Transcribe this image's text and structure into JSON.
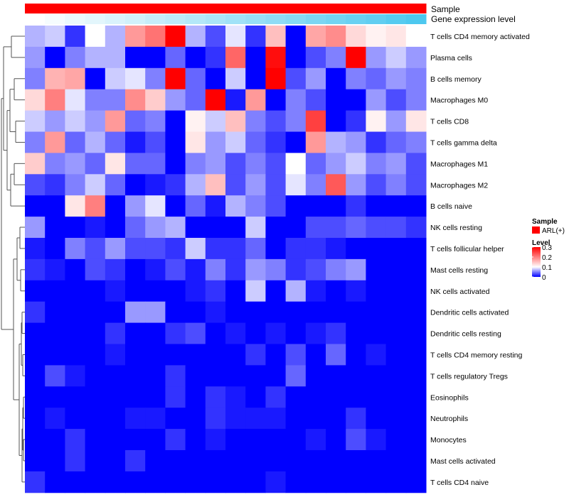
{
  "chart_data": {
    "type": "heatmap",
    "title": "",
    "xlabel": "",
    "ylabel": "",
    "annotations": {
      "sample_label": "Sample",
      "gene_label": "Gene expression level",
      "sample_color": "#ff0000",
      "gene_expression_values": [
        0.0,
        0.05,
        0.11,
        0.16,
        0.21,
        0.26,
        0.32,
        0.37,
        0.42,
        0.47,
        0.53,
        0.58,
        0.63,
        0.68,
        0.74,
        0.79,
        0.84,
        0.89,
        0.95,
        1.0
      ],
      "gene_expression_colors": [
        "#ffffff",
        "#4dc8ef"
      ]
    },
    "legend": {
      "position": "right",
      "sample_title": "Sample",
      "sample_entries": [
        {
          "label": "ARL(+)",
          "color": "#ff0000"
        }
      ],
      "level_title": "Level",
      "level_ticks": [
        0.3,
        0.2,
        0.1,
        0
      ],
      "level_tick_labels": [
        "0.3",
        "0.2",
        "0.1",
        "0"
      ]
    },
    "color_scale": {
      "min": 0,
      "mid": 0.1,
      "max": 0.3,
      "colors": [
        "#0000ff",
        "#ffffff",
        "#ff0000"
      ]
    },
    "columns": 20,
    "rows": [
      "T cells CD4 memory activated",
      "Plasma cells",
      "B cells memory",
      "Macrophages M0",
      "T cells CD8",
      "T cells gamma delta",
      "Macrophages M1",
      "Macrophages M2",
      "B cells naive",
      "NK cells resting",
      "T cells follicular helper",
      "Mast cells resting",
      "NK cells activated",
      "Dendritic cells activated",
      "Dendritic cells resting",
      "T cells CD4 memory resting",
      "T cells regulatory  Tregs",
      "Eosinophils",
      "Neutrophils",
      "Monocytes",
      "Mast cells activated",
      "T cells CD4 naive"
    ],
    "values": [
      [
        0.07,
        0.08,
        0.02,
        0.1,
        0.07,
        0.18,
        0.21,
        0.3,
        0.07,
        0.03,
        0.09,
        0.02,
        0.15,
        0.0,
        0.17,
        0.19,
        0.13,
        0.11,
        0.12,
        0.1
      ],
      [
        0.06,
        0.0,
        0.05,
        0.07,
        0.07,
        0.0,
        0.0,
        0.04,
        0.0,
        0.02,
        0.22,
        0.0,
        0.29,
        0.0,
        0.03,
        0.05,
        0.3,
        0.06,
        0.08,
        0.06
      ],
      [
        0.05,
        0.16,
        0.17,
        0.0,
        0.08,
        0.09,
        0.05,
        0.3,
        0.04,
        0.0,
        0.08,
        0.0,
        0.3,
        0.03,
        0.06,
        0.0,
        0.05,
        0.04,
        0.06,
        0.05
      ],
      [
        0.13,
        0.2,
        0.09,
        0.05,
        0.05,
        0.19,
        0.14,
        0.06,
        0.04,
        0.3,
        0.01,
        0.18,
        0.0,
        0.05,
        0.03,
        0.0,
        0.0,
        0.06,
        0.03,
        0.05
      ],
      [
        0.08,
        0.06,
        0.08,
        0.06,
        0.18,
        0.04,
        0.05,
        0.0,
        0.11,
        0.08,
        0.15,
        0.05,
        0.03,
        0.05,
        0.25,
        0.0,
        0.02,
        0.11,
        0.06,
        0.12
      ],
      [
        0.05,
        0.18,
        0.04,
        0.07,
        0.04,
        0.01,
        0.03,
        0.0,
        0.12,
        0.06,
        0.08,
        0.04,
        0.02,
        0.0,
        0.18,
        0.07,
        0.06,
        0.02,
        0.04,
        0.05
      ],
      [
        0.14,
        0.05,
        0.06,
        0.04,
        0.12,
        0.04,
        0.04,
        0.0,
        0.05,
        0.06,
        0.03,
        0.05,
        0.03,
        0.1,
        0.04,
        0.06,
        0.08,
        0.05,
        0.06,
        0.03
      ],
      [
        0.03,
        0.02,
        0.05,
        0.08,
        0.04,
        0.0,
        0.01,
        0.02,
        0.07,
        0.15,
        0.03,
        0.06,
        0.03,
        0.09,
        0.05,
        0.23,
        0.06,
        0.03,
        0.05,
        0.03
      ],
      [
        0.0,
        0.0,
        0.12,
        0.2,
        0.0,
        0.06,
        0.09,
        0.0,
        0.04,
        0.01,
        0.07,
        0.05,
        0.03,
        0.0,
        0.0,
        0.0,
        0.02,
        0.0,
        0.0,
        0.0
      ],
      [
        0.06,
        0.0,
        0.0,
        0.01,
        0.0,
        0.04,
        0.06,
        0.07,
        0.0,
        0.0,
        0.0,
        0.08,
        0.0,
        0.0,
        0.03,
        0.03,
        0.04,
        0.03,
        0.03,
        0.02
      ],
      [
        0.01,
        0.0,
        0.05,
        0.03,
        0.06,
        0.03,
        0.03,
        0.02,
        0.08,
        0.02,
        0.02,
        0.04,
        0.0,
        0.02,
        0.02,
        0.01,
        0.0,
        0.0,
        0.0,
        0.0
      ],
      [
        0.02,
        0.01,
        0.0,
        0.03,
        0.02,
        0.0,
        0.01,
        0.03,
        0.01,
        0.05,
        0.02,
        0.06,
        0.05,
        0.02,
        0.03,
        0.05,
        0.06,
        0.0,
        0.0,
        0.0
      ],
      [
        0.0,
        0.0,
        0.0,
        0.0,
        0.01,
        0.0,
        0.0,
        0.0,
        0.01,
        0.02,
        0.0,
        0.08,
        0.0,
        0.07,
        0.01,
        0.0,
        0.01,
        0.0,
        0.0,
        0.0
      ],
      [
        0.02,
        0.0,
        0.0,
        0.0,
        0.0,
        0.06,
        0.06,
        0.0,
        0.0,
        0.01,
        0.0,
        0.0,
        0.0,
        0.0,
        0.0,
        0.0,
        0.0,
        0.0,
        0.0,
        0.0
      ],
      [
        0.0,
        0.0,
        0.0,
        0.0,
        0.02,
        0.0,
        0.0,
        0.02,
        0.03,
        0.0,
        0.01,
        0.0,
        0.01,
        0.0,
        0.01,
        0.02,
        0.0,
        0.0,
        0.0,
        0.0
      ],
      [
        0.0,
        0.0,
        0.0,
        0.0,
        0.01,
        0.0,
        0.0,
        0.0,
        0.0,
        0.0,
        0.0,
        0.02,
        0.0,
        0.03,
        0.0,
        0.04,
        0.0,
        0.01,
        0.0,
        0.0
      ],
      [
        0.0,
        0.03,
        0.01,
        0.0,
        0.0,
        0.0,
        0.0,
        0.02,
        0.0,
        0.0,
        0.0,
        0.0,
        0.0,
        0.04,
        0.0,
        0.0,
        0.0,
        0.0,
        0.0,
        0.0
      ],
      [
        0.0,
        0.0,
        0.0,
        0.0,
        0.0,
        0.0,
        0.0,
        0.02,
        0.0,
        0.02,
        0.01,
        0.0,
        0.02,
        0.0,
        0.0,
        0.0,
        0.0,
        0.0,
        0.0,
        0.0
      ],
      [
        0.0,
        0.01,
        0.0,
        0.0,
        0.0,
        0.01,
        0.01,
        0.0,
        0.0,
        0.02,
        0.01,
        0.01,
        0.01,
        0.0,
        0.0,
        0.0,
        0.02,
        0.0,
        0.0,
        0.0
      ],
      [
        0.0,
        0.0,
        0.02,
        0.0,
        0.0,
        0.0,
        0.0,
        0.02,
        0.0,
        0.01,
        0.0,
        0.0,
        0.0,
        0.0,
        0.01,
        0.0,
        0.03,
        0.01,
        0.0,
        0.0
      ],
      [
        0.0,
        0.0,
        0.02,
        0.0,
        0.0,
        0.02,
        0.0,
        0.0,
        0.0,
        0.0,
        0.0,
        0.0,
        0.0,
        0.0,
        0.0,
        0.0,
        0.0,
        0.0,
        0.0,
        0.0
      ],
      [
        0.02,
        0.0,
        0.0,
        0.0,
        0.0,
        0.0,
        0.0,
        0.0,
        0.0,
        0.0,
        0.0,
        0.0,
        0.01,
        0.0,
        0.0,
        0.0,
        0.0,
        0.0,
        0.0,
        0.0
      ]
    ]
  }
}
